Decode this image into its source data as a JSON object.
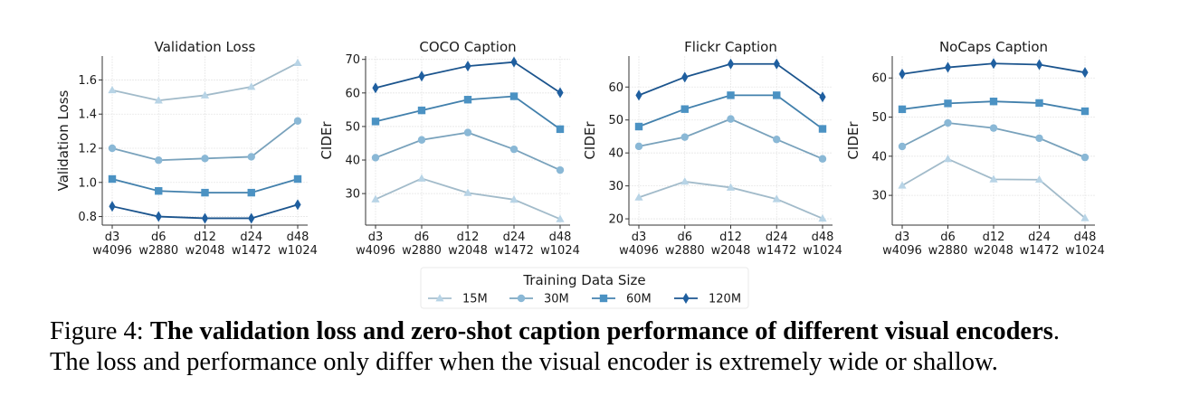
{
  "chart_data": [
    {
      "type": "line",
      "title": "Validation Loss",
      "xlabel": "",
      "ylabel": "Validation Loss",
      "categories": [
        "d3\nw4096",
        "d6\nw2880",
        "d12\nw2048",
        "d24\nw1472",
        "d48\nw1024"
      ],
      "yticks": [
        0.8,
        1.0,
        1.2,
        1.4,
        1.6
      ],
      "ytick_labels": [
        "0.8",
        "1.0",
        "1.2",
        "1.4",
        "1.6"
      ],
      "ylim": [
        0.75,
        1.74
      ],
      "grid": true,
      "series": [
        {
          "name": "15M",
          "values": [
            1.54,
            1.48,
            1.51,
            1.56,
            1.7
          ]
        },
        {
          "name": "30M",
          "values": [
            1.2,
            1.13,
            1.14,
            1.15,
            1.36
          ]
        },
        {
          "name": "60M",
          "values": [
            1.02,
            0.95,
            0.94,
            0.94,
            1.02
          ]
        },
        {
          "name": "120M",
          "values": [
            0.86,
            0.8,
            0.79,
            0.79,
            0.87
          ]
        }
      ]
    },
    {
      "type": "line",
      "title": "COCO Caption",
      "xlabel": "",
      "ylabel": "CIDEr",
      "categories": [
        "d3\nw4096",
        "d6\nw2880",
        "d12\nw2048",
        "d24\nw1472",
        "d48\nw1024"
      ],
      "yticks": [
        30,
        40,
        50,
        60,
        70
      ],
      "ytick_labels": [
        "30",
        "40",
        "50",
        "60",
        "70"
      ],
      "ylim": [
        20.6,
        71
      ],
      "grid": true,
      "series": [
        {
          "name": "15M",
          "values": [
            28.3,
            34.5,
            30.2,
            28.2,
            22.4
          ]
        },
        {
          "name": "30M",
          "values": [
            40.7,
            46.0,
            48.2,
            43.2,
            37.0
          ]
        },
        {
          "name": "60M",
          "values": [
            51.5,
            54.8,
            58.0,
            59.0,
            49.2
          ]
        },
        {
          "name": "120M",
          "values": [
            61.5,
            65.0,
            68.0,
            69.2,
            60.1
          ]
        }
      ]
    },
    {
      "type": "line",
      "title": "Flickr Caption",
      "xlabel": "",
      "ylabel": "CIDEr",
      "categories": [
        "d3\nw4096",
        "d6\nw2880",
        "d12\nw2048",
        "d24\nw1472",
        "d48\nw1024"
      ],
      "yticks": [
        20,
        30,
        40,
        50,
        60
      ],
      "ytick_labels": [
        "20",
        "30",
        "40",
        "50",
        "60"
      ],
      "ylim": [
        18.1,
        69.4
      ],
      "grid": true,
      "series": [
        {
          "name": "15M",
          "values": [
            26.5,
            31.3,
            29.5,
            26.0,
            20.1
          ]
        },
        {
          "name": "30M",
          "values": [
            42.0,
            44.8,
            50.3,
            44.1,
            38.2
          ]
        },
        {
          "name": "60M",
          "values": [
            48.0,
            53.3,
            57.5,
            57.5,
            47.3
          ]
        },
        {
          "name": "120M",
          "values": [
            57.5,
            63.0,
            67.0,
            67.0,
            57.0
          ]
        }
      ]
    },
    {
      "type": "line",
      "title": "NoCaps Caption",
      "xlabel": "",
      "ylabel": "CIDEr",
      "categories": [
        "d3\nw4096",
        "d6\nw2880",
        "d12\nw2048",
        "d24\nw1472",
        "d48\nw1024"
      ],
      "yticks": [
        30,
        40,
        50,
        60
      ],
      "ytick_labels": [
        "30",
        "40",
        "50",
        "60"
      ],
      "ylim": [
        22.4,
        65.6
      ],
      "grid": true,
      "series": [
        {
          "name": "15M",
          "values": [
            32.5,
            39.3,
            34.1,
            34.0,
            24.2
          ]
        },
        {
          "name": "30M",
          "values": [
            42.5,
            48.5,
            47.2,
            44.6,
            39.7
          ]
        },
        {
          "name": "60M",
          "values": [
            52.0,
            53.5,
            54.0,
            53.6,
            51.5
          ]
        },
        {
          "name": "120M",
          "values": [
            61.0,
            62.7,
            63.7,
            63.4,
            61.4
          ]
        }
      ]
    }
  ],
  "legend": {
    "title": "Training Data Size",
    "placement": "bottom-center",
    "entries": [
      {
        "label": "15M",
        "marker": "triangle",
        "color": "#b8d4e6"
      },
      {
        "label": "30M",
        "marker": "circle",
        "color": "#8ab8d6"
      },
      {
        "label": "60M",
        "marker": "square",
        "color": "#4b92c3"
      },
      {
        "label": "120M",
        "marker": "diamond",
        "color": "#1f5fa0"
      }
    ]
  },
  "series_style": {
    "15M": {
      "marker": "triangle",
      "color": "#b8d4e6"
    },
    "30M": {
      "marker": "circle",
      "color": "#8ab8d6"
    },
    "60M": {
      "marker": "square",
      "color": "#4b92c3"
    },
    "120M": {
      "marker": "diamond",
      "color": "#1f5fa0"
    }
  },
  "caption": {
    "label": "Figure 4: ",
    "bold": "The validation loss and zero-shot caption performance of different visual encoders",
    "bold_end": ".",
    "text": "The loss and performance only differ when the visual encoder is extremely wide or shallow."
  }
}
